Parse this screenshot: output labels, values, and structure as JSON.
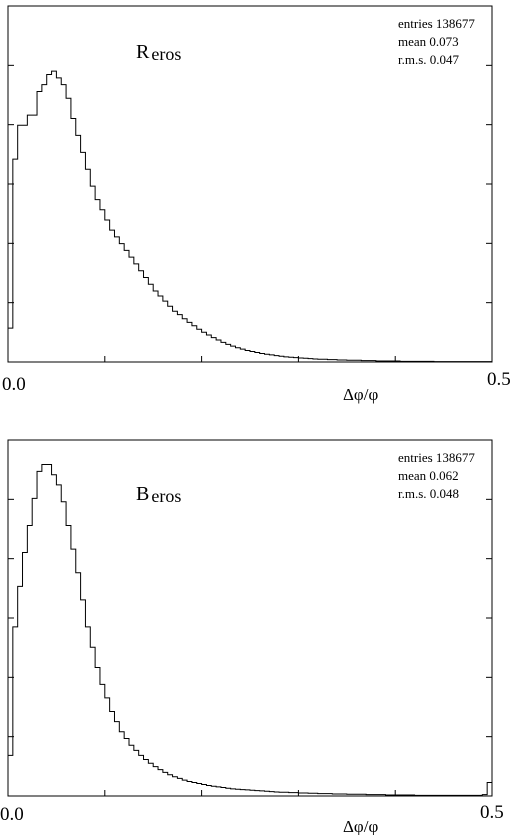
{
  "chart_data": [
    {
      "type": "histogram",
      "title_main": "R",
      "title_sub": "eros",
      "xlabel": "Δφ/φ",
      "xlim": [
        0.0,
        0.5
      ],
      "x_tick_labels": [
        "0.0",
        "0.5"
      ],
      "stats": {
        "entries_label": "entries",
        "entries": "138677",
        "mean_label": "mean",
        "mean": "0.073",
        "rms_label": "r.m.s.",
        "rms": "0.047"
      },
      "bin_width": 0.005,
      "counts": [
        0.1,
        0.6,
        0.7,
        0.7,
        0.73,
        0.73,
        0.8,
        0.82,
        0.85,
        0.86,
        0.84,
        0.82,
        0.78,
        0.72,
        0.67,
        0.62,
        0.57,
        0.52,
        0.48,
        0.45,
        0.42,
        0.39,
        0.37,
        0.35,
        0.33,
        0.31,
        0.29,
        0.27,
        0.25,
        0.23,
        0.21,
        0.195,
        0.18,
        0.165,
        0.15,
        0.14,
        0.128,
        0.117,
        0.107,
        0.097,
        0.088,
        0.08,
        0.072,
        0.065,
        0.058,
        0.052,
        0.047,
        0.042,
        0.038,
        0.034,
        0.031,
        0.028,
        0.025,
        0.023,
        0.021,
        0.019,
        0.017,
        0.015,
        0.014,
        0.013,
        0.012,
        0.011,
        0.01,
        0.009,
        0.008,
        0.008,
        0.007,
        0.007,
        0.006,
        0.006,
        0.005,
        0.005,
        0.005,
        0.004,
        0.004,
        0.004,
        0.003,
        0.003,
        0.003,
        0.003,
        0.003,
        0.002,
        0.002,
        0.002,
        0.002,
        0.002,
        0.002,
        0.002,
        0.001,
        0.001,
        0.001,
        0.001,
        0.001,
        0.001,
        0.001,
        0.001,
        0.001,
        0.001,
        0.001,
        0.001
      ],
      "ylim": [
        0,
        1
      ]
    },
    {
      "type": "histogram",
      "title_main": "B",
      "title_sub": "eros",
      "xlabel": "Δφ/φ",
      "xlim": [
        0.0,
        0.5
      ],
      "x_tick_labels": [
        "0.0",
        "0.5"
      ],
      "stats": {
        "entries_label": "entries",
        "entries": "138677",
        "mean_label": "mean",
        "mean": "0.062",
        "rms_label": "r.m.s.",
        "rms": "0.048"
      },
      "bin_width": 0.005,
      "counts": [
        0.12,
        0.5,
        0.62,
        0.72,
        0.8,
        0.88,
        0.96,
        0.98,
        0.98,
        0.95,
        0.92,
        0.87,
        0.8,
        0.73,
        0.66,
        0.58,
        0.5,
        0.44,
        0.38,
        0.33,
        0.29,
        0.25,
        0.22,
        0.19,
        0.17,
        0.15,
        0.135,
        0.12,
        0.108,
        0.097,
        0.087,
        0.078,
        0.07,
        0.063,
        0.057,
        0.052,
        0.047,
        0.043,
        0.04,
        0.037,
        0.034,
        0.031,
        0.029,
        0.027,
        0.025,
        0.023,
        0.021,
        0.02,
        0.019,
        0.018,
        0.017,
        0.016,
        0.015,
        0.014,
        0.013,
        0.012,
        0.011,
        0.011,
        0.01,
        0.01,
        0.009,
        0.009,
        0.008,
        0.008,
        0.007,
        0.007,
        0.007,
        0.006,
        0.006,
        0.006,
        0.005,
        0.005,
        0.005,
        0.005,
        0.004,
        0.004,
        0.004,
        0.004,
        0.003,
        0.003,
        0.003,
        0.003,
        0.003,
        0.003,
        0.002,
        0.002,
        0.002,
        0.002,
        0.002,
        0.002,
        0.002,
        0.002,
        0.002,
        0.002,
        0.002,
        0.002,
        0.002,
        0.002,
        0.004,
        0.04
      ],
      "ylim": [
        0,
        1
      ]
    }
  ]
}
